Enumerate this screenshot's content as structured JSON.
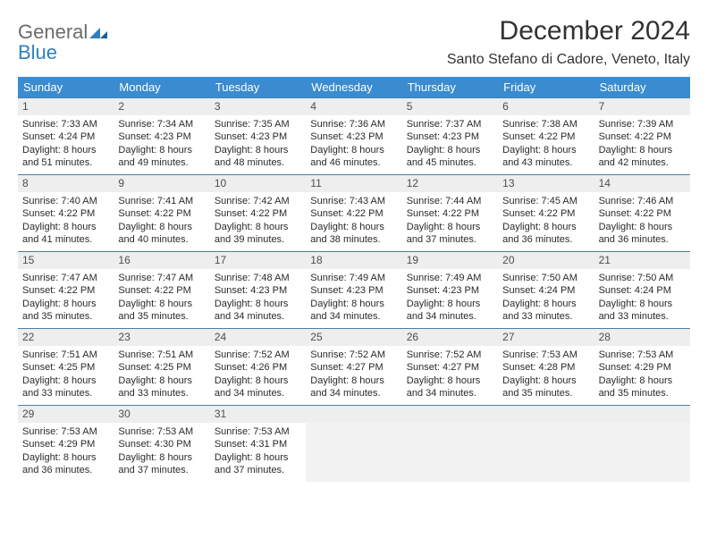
{
  "brand": {
    "word1": "General",
    "word2": "Blue"
  },
  "title": "December 2024",
  "location": "Santo Stefano di Cadore, Veneto, Italy",
  "colors": {
    "header_bg": "#3a8bcf",
    "rule": "#4b7da8",
    "daynum_bg": "#eeeeee",
    "brand_grey": "#6b6b6b",
    "brand_blue": "#2f7fc2"
  },
  "days_of_week": [
    "Sunday",
    "Monday",
    "Tuesday",
    "Wednesday",
    "Thursday",
    "Friday",
    "Saturday"
  ],
  "days": [
    {
      "n": "1",
      "sunrise": "7:33 AM",
      "sunset": "4:24 PM",
      "daylight": "8 hours and 51 minutes."
    },
    {
      "n": "2",
      "sunrise": "7:34 AM",
      "sunset": "4:23 PM",
      "daylight": "8 hours and 49 minutes."
    },
    {
      "n": "3",
      "sunrise": "7:35 AM",
      "sunset": "4:23 PM",
      "daylight": "8 hours and 48 minutes."
    },
    {
      "n": "4",
      "sunrise": "7:36 AM",
      "sunset": "4:23 PM",
      "daylight": "8 hours and 46 minutes."
    },
    {
      "n": "5",
      "sunrise": "7:37 AM",
      "sunset": "4:23 PM",
      "daylight": "8 hours and 45 minutes."
    },
    {
      "n": "6",
      "sunrise": "7:38 AM",
      "sunset": "4:22 PM",
      "daylight": "8 hours and 43 minutes."
    },
    {
      "n": "7",
      "sunrise": "7:39 AM",
      "sunset": "4:22 PM",
      "daylight": "8 hours and 42 minutes."
    },
    {
      "n": "8",
      "sunrise": "7:40 AM",
      "sunset": "4:22 PM",
      "daylight": "8 hours and 41 minutes."
    },
    {
      "n": "9",
      "sunrise": "7:41 AM",
      "sunset": "4:22 PM",
      "daylight": "8 hours and 40 minutes."
    },
    {
      "n": "10",
      "sunrise": "7:42 AM",
      "sunset": "4:22 PM",
      "daylight": "8 hours and 39 minutes."
    },
    {
      "n": "11",
      "sunrise": "7:43 AM",
      "sunset": "4:22 PM",
      "daylight": "8 hours and 38 minutes."
    },
    {
      "n": "12",
      "sunrise": "7:44 AM",
      "sunset": "4:22 PM",
      "daylight": "8 hours and 37 minutes."
    },
    {
      "n": "13",
      "sunrise": "7:45 AM",
      "sunset": "4:22 PM",
      "daylight": "8 hours and 36 minutes."
    },
    {
      "n": "14",
      "sunrise": "7:46 AM",
      "sunset": "4:22 PM",
      "daylight": "8 hours and 36 minutes."
    },
    {
      "n": "15",
      "sunrise": "7:47 AM",
      "sunset": "4:22 PM",
      "daylight": "8 hours and 35 minutes."
    },
    {
      "n": "16",
      "sunrise": "7:47 AM",
      "sunset": "4:22 PM",
      "daylight": "8 hours and 35 minutes."
    },
    {
      "n": "17",
      "sunrise": "7:48 AM",
      "sunset": "4:23 PM",
      "daylight": "8 hours and 34 minutes."
    },
    {
      "n": "18",
      "sunrise": "7:49 AM",
      "sunset": "4:23 PM",
      "daylight": "8 hours and 34 minutes."
    },
    {
      "n": "19",
      "sunrise": "7:49 AM",
      "sunset": "4:23 PM",
      "daylight": "8 hours and 34 minutes."
    },
    {
      "n": "20",
      "sunrise": "7:50 AM",
      "sunset": "4:24 PM",
      "daylight": "8 hours and 33 minutes."
    },
    {
      "n": "21",
      "sunrise": "7:50 AM",
      "sunset": "4:24 PM",
      "daylight": "8 hours and 33 minutes."
    },
    {
      "n": "22",
      "sunrise": "7:51 AM",
      "sunset": "4:25 PM",
      "daylight": "8 hours and 33 minutes."
    },
    {
      "n": "23",
      "sunrise": "7:51 AM",
      "sunset": "4:25 PM",
      "daylight": "8 hours and 33 minutes."
    },
    {
      "n": "24",
      "sunrise": "7:52 AM",
      "sunset": "4:26 PM",
      "daylight": "8 hours and 34 minutes."
    },
    {
      "n": "25",
      "sunrise": "7:52 AM",
      "sunset": "4:27 PM",
      "daylight": "8 hours and 34 minutes."
    },
    {
      "n": "26",
      "sunrise": "7:52 AM",
      "sunset": "4:27 PM",
      "daylight": "8 hours and 34 minutes."
    },
    {
      "n": "27",
      "sunrise": "7:53 AM",
      "sunset": "4:28 PM",
      "daylight": "8 hours and 35 minutes."
    },
    {
      "n": "28",
      "sunrise": "7:53 AM",
      "sunset": "4:29 PM",
      "daylight": "8 hours and 35 minutes."
    },
    {
      "n": "29",
      "sunrise": "7:53 AM",
      "sunset": "4:29 PM",
      "daylight": "8 hours and 36 minutes."
    },
    {
      "n": "30",
      "sunrise": "7:53 AM",
      "sunset": "4:30 PM",
      "daylight": "8 hours and 37 minutes."
    },
    {
      "n": "31",
      "sunrise": "7:53 AM",
      "sunset": "4:31 PM",
      "daylight": "8 hours and 37 minutes."
    }
  ],
  "labels": {
    "sunrise": "Sunrise: ",
    "sunset": "Sunset: ",
    "daylight": "Daylight: "
  },
  "first_day_offset": 0,
  "trailing_blanks": 4
}
